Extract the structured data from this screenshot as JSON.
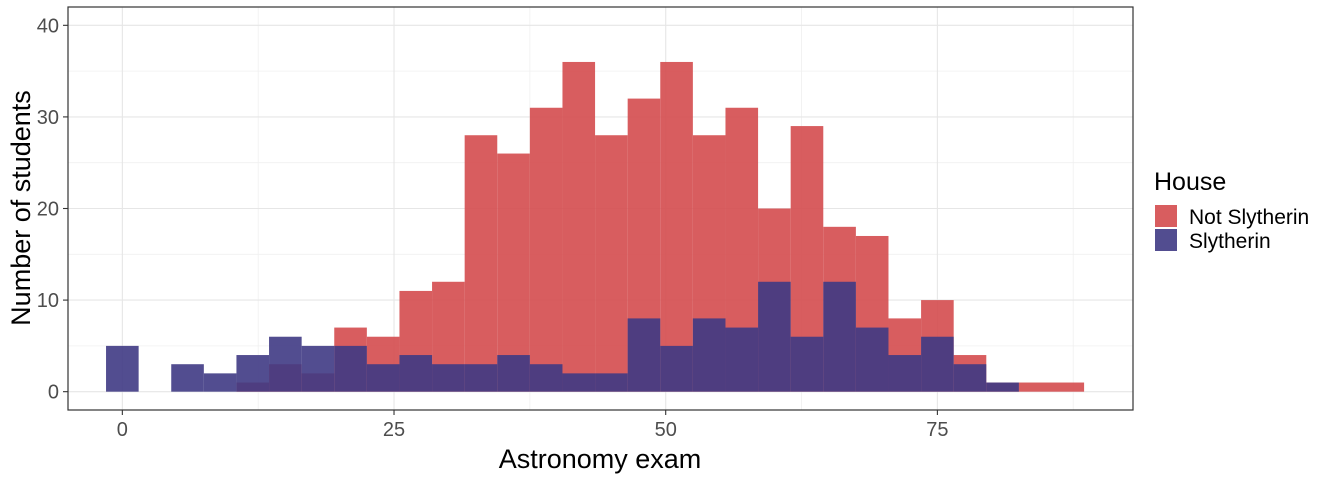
{
  "chart_data": {
    "type": "bar",
    "subtype": "stacked-histogram",
    "xlabel": "Astronomy exam",
    "ylabel": "Number of students",
    "xlim": [
      -5,
      93
    ],
    "ylim": [
      -2,
      42
    ],
    "xticks": [
      0,
      25,
      50,
      75
    ],
    "yticks": [
      0,
      10,
      20,
      30,
      40
    ],
    "grid": true,
    "legend_position": "right",
    "legend_title": "House",
    "bins": [
      [
        -1.5,
        1.5
      ],
      [
        1.5,
        4.5
      ],
      [
        4.5,
        7.5
      ],
      [
        7.5,
        10.5
      ],
      [
        10.5,
        13.5
      ],
      [
        13.5,
        16.5
      ],
      [
        16.5,
        19.5
      ],
      [
        19.5,
        22.5
      ],
      [
        22.5,
        25.5
      ],
      [
        25.5,
        28.5
      ],
      [
        28.5,
        31.5
      ],
      [
        31.5,
        34.5
      ],
      [
        34.5,
        37.5
      ],
      [
        37.5,
        40.5
      ],
      [
        40.5,
        43.5
      ],
      [
        43.5,
        46.5
      ],
      [
        46.5,
        49.5
      ],
      [
        49.5,
        52.5
      ],
      [
        52.5,
        55.5
      ],
      [
        55.5,
        58.5
      ],
      [
        58.5,
        61.5
      ],
      [
        61.5,
        64.5
      ],
      [
        64.5,
        67.5
      ],
      [
        67.5,
        70.5
      ],
      [
        70.5,
        73.5
      ],
      [
        73.5,
        76.5
      ],
      [
        76.5,
        79.5
      ],
      [
        79.5,
        82.5
      ],
      [
        82.5,
        85.5
      ],
      [
        85.5,
        88.5
      ]
    ],
    "series": [
      {
        "name": "Not Slytherin",
        "color": "#d44b4e",
        "values": [
          0,
          0,
          0,
          0,
          1,
          3,
          2,
          7,
          6,
          11,
          12,
          28,
          26,
          31,
          36,
          28,
          32,
          36,
          28,
          31,
          20,
          29,
          18,
          17,
          8,
          10,
          4,
          1,
          1,
          1
        ]
      },
      {
        "name": "Slytherin",
        "color": "#3f3a84",
        "values": [
          5,
          0,
          3,
          2,
          4,
          6,
          5,
          5,
          3,
          4,
          3,
          3,
          4,
          3,
          2,
          2,
          8,
          5,
          8,
          7,
          12,
          6,
          12,
          7,
          4,
          6,
          3,
          1,
          0,
          0
        ]
      }
    ]
  }
}
